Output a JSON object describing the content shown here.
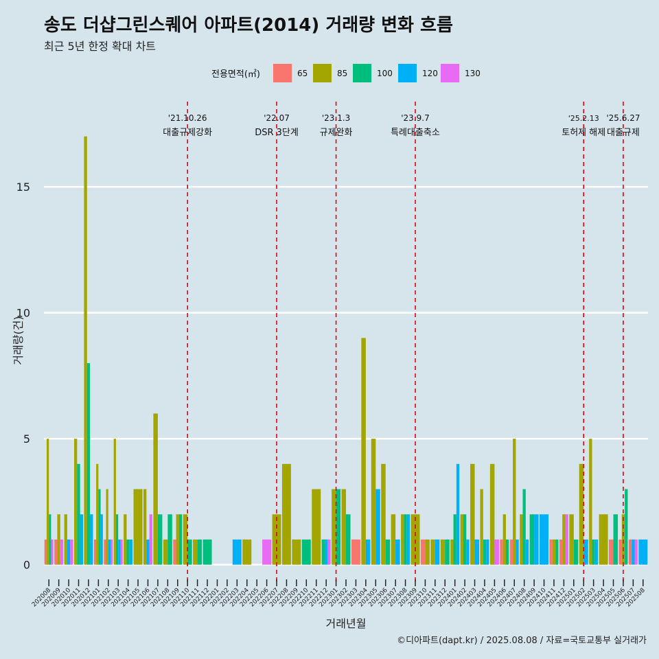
{
  "header": {
    "title": "송도 더샵그린스퀘어 아파트(2014) 거래량 변화 흐름",
    "subtitle": "최근 5년 한정 확대 차트"
  },
  "caption": "©디아파트(dapt.kr) / 2025.08.08 / 자료=국토교통부 실거래가",
  "colors": {
    "background": "#d6e4ec",
    "gridline": "#ffffff",
    "event_line": "#e8000b",
    "s65": "#f8766d",
    "s85": "#a3a500",
    "s100": "#00bf7d",
    "s120": "#00b0f6",
    "s130": "#e76bf3"
  },
  "chart_data": {
    "type": "bar",
    "xlabel": "거래년월",
    "ylabel": "거래량(건)",
    "ylim": [
      -0.8,
      18.6
    ],
    "yticks": [
      0,
      5,
      10,
      15
    ],
    "grid": true,
    "legend": {
      "title": "전용면적(㎡)",
      "position": "top",
      "entries": [
        "65",
        "85",
        "100",
        "120",
        "130"
      ]
    },
    "categories": [
      "202008",
      "202009",
      "202010",
      "202011",
      "202012",
      "202101",
      "202102",
      "202103",
      "202104",
      "202105",
      "202106",
      "202107",
      "202108",
      "202109",
      "202110",
      "202111",
      "202112",
      "202201",
      "202202",
      "202203",
      "202204",
      "202205",
      "202206",
      "202207",
      "202208",
      "202209",
      "202210",
      "202211",
      "202212",
      "202301",
      "202302",
      "202303",
      "202304",
      "202305",
      "202306",
      "202307",
      "202308",
      "202309",
      "202310",
      "202311",
      "202312",
      "202401",
      "202402",
      "202403",
      "202404",
      "202405",
      "202406",
      "202407",
      "202408",
      "202409",
      "202410",
      "202411",
      "202412",
      "202501",
      "202502",
      "202503",
      "202504",
      "202505",
      "202506",
      "202507",
      "202508"
    ],
    "series": [
      {
        "name": "65",
        "values": [
          1,
          1,
          0,
          0,
          0,
          1,
          1,
          0,
          0,
          0,
          0,
          0,
          0,
          1,
          0,
          0,
          0,
          0,
          0,
          0,
          0,
          0,
          0,
          0,
          0,
          0,
          0,
          0,
          0,
          0,
          0,
          1,
          0,
          0,
          0,
          0,
          0,
          0,
          1,
          0,
          0,
          0,
          0,
          0,
          0,
          0,
          1,
          1,
          0,
          0,
          0,
          1,
          1,
          0,
          0,
          0,
          0,
          1,
          1,
          1,
          0
        ]
      },
      {
        "name": "85",
        "values": [
          5,
          2,
          2,
          5,
          17,
          4,
          3,
          5,
          2,
          3,
          3,
          6,
          1,
          2,
          2,
          1,
          0,
          0,
          0,
          0,
          1,
          0,
          0,
          2,
          4,
          1,
          0,
          3,
          0,
          3,
          3,
          0,
          9,
          5,
          4,
          2,
          2,
          2,
          1,
          1,
          1,
          1,
          2,
          4,
          3,
          4,
          2,
          5,
          2,
          0,
          0,
          1,
          2,
          2,
          4,
          5,
          2,
          0,
          2,
          0,
          0
        ]
      },
      {
        "name": "100",
        "values": [
          2,
          0,
          0,
          4,
          8,
          3,
          0,
          2,
          1,
          0,
          0,
          2,
          2,
          2,
          1,
          1,
          1,
          0,
          0,
          0,
          0,
          0,
          0,
          0,
          0,
          0,
          1,
          0,
          1,
          3,
          2,
          0,
          0,
          0,
          1,
          0,
          2,
          0,
          0,
          0,
          1,
          2,
          2,
          0,
          1,
          0,
          1,
          0,
          3,
          2,
          0,
          1,
          0,
          1,
          0,
          1,
          0,
          2,
          3,
          0,
          0
        ]
      },
      {
        "name": "120",
        "values": [
          0,
          0,
          1,
          2,
          2,
          2,
          1,
          1,
          1,
          0,
          1,
          0,
          0,
          0,
          0,
          0,
          0,
          0,
          0,
          1,
          0,
          0,
          0,
          0,
          0,
          0,
          0,
          0,
          1,
          0,
          0,
          0,
          1,
          3,
          0,
          1,
          2,
          0,
          0,
          1,
          0,
          4,
          1,
          1,
          1,
          0,
          0,
          1,
          1,
          2,
          2,
          0,
          0,
          0,
          1,
          1,
          0,
          0,
          0,
          1,
          1
        ]
      },
      {
        "name": "130",
        "values": [
          1,
          1,
          1,
          0,
          0,
          0,
          1,
          1,
          0,
          0,
          2,
          0,
          0,
          0,
          0,
          0,
          0,
          0,
          0,
          0,
          0,
          0,
          1,
          0,
          0,
          0,
          0,
          0,
          1,
          0,
          0,
          0,
          0,
          0,
          0,
          0,
          0,
          0,
          0,
          0,
          0,
          0,
          0,
          0,
          0,
          1,
          0,
          0,
          0,
          0,
          0,
          0,
          2,
          0,
          0,
          0,
          0,
          0,
          0,
          1,
          0
        ]
      }
    ],
    "events": [
      {
        "date": "'21.10.26",
        "label": "대출규제강화",
        "at": "202110"
      },
      {
        "date": "'22.07",
        "label": "DSR 3단계",
        "at": "202207"
      },
      {
        "date": "'23.1.3",
        "label": "규제완화",
        "at": "202301"
      },
      {
        "date": "'23.9.7",
        "label": "특례대출축소",
        "at": "202309"
      },
      {
        "date": "'25.2.13",
        "label": "토허제 해제",
        "at": "202502"
      },
      {
        "date": "'25.6.27",
        "label": "대출규제",
        "at": "202506"
      }
    ]
  }
}
